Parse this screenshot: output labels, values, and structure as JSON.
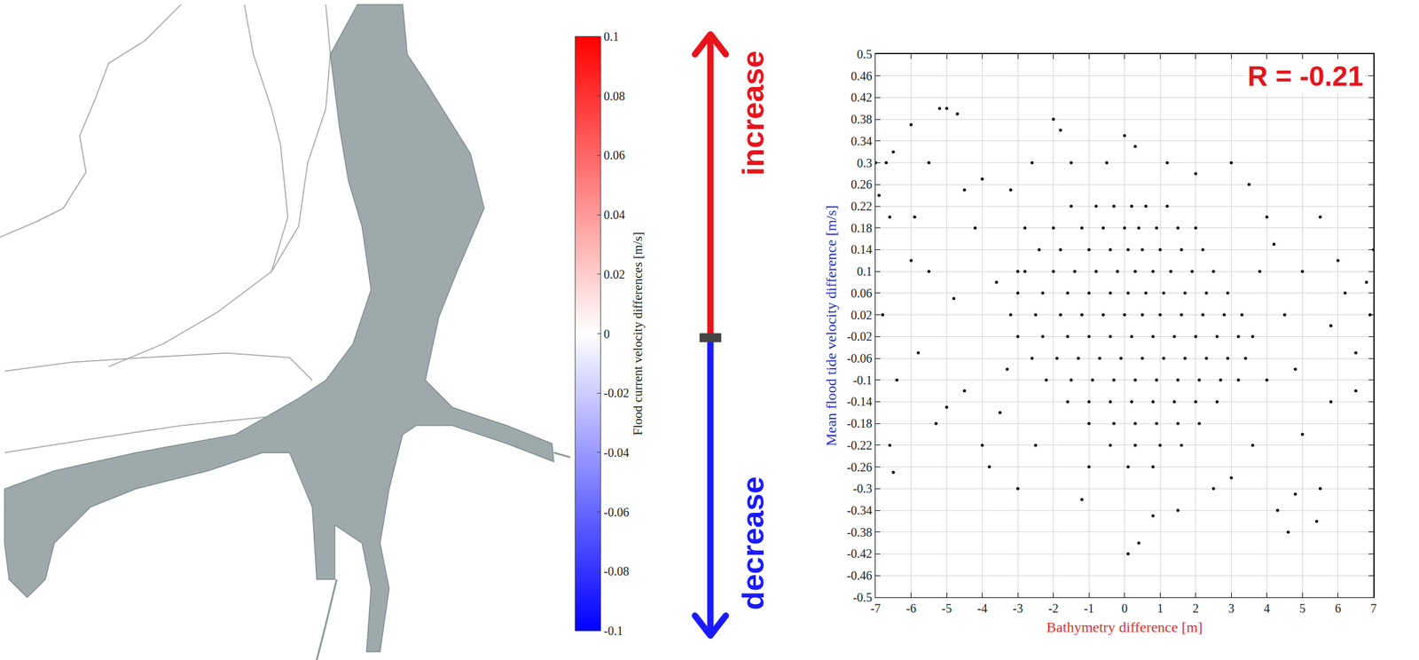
{
  "chart_data": [
    {
      "type": "map",
      "colorbar": {
        "title": "Flood current velocity differences [m/s]",
        "range": [
          -0.1,
          0.1
        ],
        "ticks": [
          -0.1,
          -0.08,
          -0.06,
          -0.04,
          -0.02,
          0,
          0.02,
          0.04,
          0.06,
          0.08,
          0.1
        ],
        "colors": [
          "#0000ff",
          "#ffffff",
          "#ff0000"
        ]
      },
      "annotations": [
        {
          "text": "increase",
          "color": "#e8141c"
        },
        {
          "text": "decrease",
          "color": "#1a1aff"
        }
      ]
    },
    {
      "type": "scatter",
      "x_label": "Bathymetry difference [m]",
      "y_label": "Mean flood tide velocity difference [m/s]",
      "color": "#000000",
      "marker": "circle",
      "grid": true,
      "annotations": [
        {
          "text": "R = -0.21",
          "color": "#e8141c"
        }
      ],
      "xlim": [
        -7,
        7
      ],
      "ylim": [
        -0.5,
        0.5
      ],
      "xticks": [
        -7,
        -6,
        -5,
        -4,
        -3,
        -2,
        -1,
        0,
        1,
        2,
        3,
        4,
        5,
        6,
        7
      ],
      "yticks": [
        -0.5,
        -0.46,
        -0.42,
        -0.38,
        -0.34,
        -0.3,
        -0.26,
        -0.22,
        -0.18,
        -0.14,
        -0.1,
        -0.06,
        -0.02,
        0.02,
        0.06,
        0.1,
        0.14,
        0.18,
        0.22,
        0.26,
        0.3,
        0.34,
        0.38,
        0.42,
        0.46,
        0.5
      ],
      "x": [
        -7,
        -6.9,
        -6.7,
        -6.5,
        -6.6,
        -6.8,
        -6.4,
        -6.6,
        -6.5,
        -6,
        -6,
        -5.8,
        -5.9,
        -5.5,
        -5.2,
        -5,
        -4.7,
        -5.3,
        -5,
        -4.5,
        -4.5,
        -4.2,
        -4,
        -3.8,
        -4,
        -3.6,
        -3.5,
        -3.2,
        -3,
        -2.6,
        -2.5,
        -2,
        -1.8,
        -1.5,
        -1.2,
        -1,
        0,
        0.1,
        0.4,
        0.3,
        -0.5,
        0.8,
        1.2,
        1.5,
        2,
        2.5,
        3,
        3,
        3.5,
        3.6,
        4,
        4.3,
        4.6,
        4.8,
        5.4,
        5.5,
        5.5,
        5.8,
        6,
        6.2,
        6.5,
        6.8,
        6.9,
        7,
        6.5,
        4.2,
        5,
        5,
        4.5,
        4,
        -4.8,
        -5.5,
        -3.3,
        -2.8,
        -3,
        3.8,
        4.8,
        5.8,
        -1.5,
        -0.8,
        -0.3,
        0.2,
        0.6,
        1.2,
        -2,
        -1.2,
        -0.6,
        0,
        0.4,
        0.9,
        1.5,
        2,
        -2.4,
        -1.8,
        -1,
        -0.4,
        0.1,
        0.5,
        1,
        1.6,
        2.2,
        -2.8,
        -2,
        -1.4,
        -0.8,
        -0.2,
        0.3,
        0.8,
        1.3,
        1.9,
        2.5,
        -3,
        -2.3,
        -1.6,
        -1,
        -0.4,
        0.1,
        0.6,
        1.1,
        1.7,
        2.3,
        2.9,
        -3.2,
        -2.5,
        -1.8,
        -1.2,
        -0.6,
        0,
        0.5,
        1,
        1.6,
        2.2,
        2.8,
        3.3,
        -3,
        -2.3,
        -1.6,
        -1,
        -0.4,
        0.2,
        0.8,
        1.4,
        2,
        2.6,
        3.2,
        3.6,
        -2.6,
        -1.9,
        -1.3,
        -0.7,
        -0.1,
        0.5,
        1.1,
        1.7,
        2.3,
        2.9,
        3.4,
        -2.2,
        -1.5,
        -0.9,
        -0.3,
        0.3,
        0.9,
        1.5,
        2.1,
        2.7,
        3.2,
        -1.6,
        -1,
        -0.4,
        0.2,
        0.8,
        1.4,
        2,
        2.6,
        -1,
        -0.3,
        0.3,
        0.9,
        1.5,
        2.1,
        -0.4,
        0.3,
        1,
        1.6,
        0.1,
        0.8
      ],
      "values": [
        0.3,
        0.24,
        0.3,
        0.32,
        0.2,
        0.02,
        -0.1,
        -0.22,
        -0.27,
        0.37,
        0.12,
        -0.05,
        0.2,
        0.3,
        0.4,
        0.4,
        0.39,
        -0.18,
        -0.15,
        0.25,
        -0.12,
        0.18,
        -0.22,
        -0.26,
        0.27,
        0.08,
        -0.16,
        0.25,
        -0.3,
        0.3,
        -0.22,
        0.38,
        0.36,
        0.3,
        -0.32,
        -0.26,
        0.35,
        -0.42,
        -0.4,
        0.33,
        0.3,
        -0.35,
        0.3,
        -0.34,
        0.28,
        -0.3,
        0.3,
        -0.28,
        0.26,
        -0.22,
        0.2,
        -0.34,
        -0.38,
        -0.31,
        -0.36,
        0.2,
        -0.3,
        -0.14,
        0.12,
        0.06,
        -0.05,
        0.08,
        0.02,
        0.14,
        -0.12,
        0.15,
        0.1,
        -0.2,
        0.02,
        -0.1,
        0.05,
        0.1,
        -0.08,
        0.18,
        0.1,
        0.1,
        -0.08,
        0,
        0.22,
        0.22,
        0.22,
        0.22,
        0.22,
        0.22,
        0.18,
        0.18,
        0.18,
        0.18,
        0.18,
        0.18,
        0.18,
        0.18,
        0.14,
        0.14,
        0.14,
        0.14,
        0.14,
        0.14,
        0.14,
        0.14,
        0.14,
        0.1,
        0.1,
        0.1,
        0.1,
        0.1,
        0.1,
        0.1,
        0.1,
        0.1,
        0.1,
        0.06,
        0.06,
        0.06,
        0.06,
        0.06,
        0.06,
        0.06,
        0.06,
        0.06,
        0.06,
        0.06,
        0.02,
        0.02,
        0.02,
        0.02,
        0.02,
        0.02,
        0.02,
        0.02,
        0.02,
        0.02,
        0.02,
        0.02,
        -0.02,
        -0.02,
        -0.02,
        -0.02,
        -0.02,
        -0.02,
        -0.02,
        -0.02,
        -0.02,
        -0.02,
        -0.02,
        -0.02,
        -0.06,
        -0.06,
        -0.06,
        -0.06,
        -0.06,
        -0.06,
        -0.06,
        -0.06,
        -0.06,
        -0.06,
        -0.06,
        -0.1,
        -0.1,
        -0.1,
        -0.1,
        -0.1,
        -0.1,
        -0.1,
        -0.1,
        -0.1,
        -0.1,
        -0.14,
        -0.14,
        -0.14,
        -0.14,
        -0.14,
        -0.14,
        -0.14,
        -0.14,
        -0.18,
        -0.18,
        -0.18,
        -0.18,
        -0.18,
        -0.18,
        -0.22,
        -0.22,
        -0.22,
        -0.22,
        -0.26,
        -0.26
      ]
    }
  ]
}
